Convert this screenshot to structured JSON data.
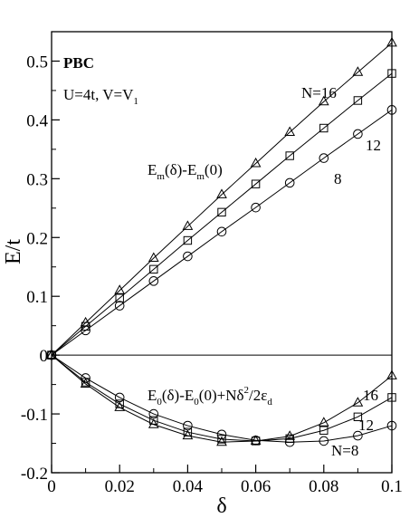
{
  "chart_data": {
    "type": "line",
    "xlabel": "δ",
    "ylabel": "E/t",
    "xlim": [
      0,
      0.1
    ],
    "ylim": [
      -0.2,
      0.55
    ],
    "x_ticks": [
      0,
      0.02,
      0.04,
      0.06,
      0.08,
      0.1
    ],
    "x_tick_labels": [
      "0",
      "0.02",
      "0.04",
      "0.06",
      "0.08",
      "0.1"
    ],
    "y_ticks": [
      -0.2,
      -0.1,
      0,
      0.1,
      0.2,
      0.3,
      0.4,
      0.5
    ],
    "y_tick_labels": [
      "-0.2",
      "-0.1",
      "0",
      "0.1",
      "0.2",
      "0.3",
      "0.4",
      "0.5"
    ],
    "zero_line": true,
    "grid": false,
    "annotations": {
      "bc": "PBC",
      "params": "U=4t,  V=V",
      "params_sub": "1",
      "upper_label": {
        "E1": "E",
        "s1": "m",
        "mid": "(δ)-E",
        "s2": "m",
        "end": "(0)"
      },
      "lower_label": {
        "E1": "E",
        "s1": "0",
        "mid": "(δ)-E",
        "s2": "0",
        "mid2": "(0)+Nδ",
        "sup": "2",
        "mid3": "/2ε",
        "s3": "d"
      },
      "upper_sizes": {
        "n16": "N=16",
        "n12": "12",
        "n8": "8"
      },
      "lower_sizes": {
        "n16": "16",
        "n12": "12",
        "n8": "N=8"
      }
    },
    "series": [
      {
        "marker": "triangle",
        "group": "upper",
        "x": [
          0,
          0.01,
          0.02,
          0.03,
          0.04,
          0.05,
          0.06,
          0.07,
          0.08,
          0.09,
          0.1
        ],
        "values": [
          0,
          0.055,
          0.11,
          0.165,
          0.219,
          0.273,
          0.326,
          0.379,
          0.431,
          0.481,
          0.531
        ]
      },
      {
        "marker": "square",
        "group": "upper",
        "x": [
          0,
          0.01,
          0.02,
          0.03,
          0.04,
          0.05,
          0.06,
          0.07,
          0.08,
          0.09,
          0.1
        ],
        "values": [
          0,
          0.049,
          0.097,
          0.146,
          0.195,
          0.243,
          0.291,
          0.339,
          0.386,
          0.433,
          0.479
        ]
      },
      {
        "marker": "circle",
        "group": "upper",
        "x": [
          0,
          0.01,
          0.02,
          0.03,
          0.04,
          0.05,
          0.06,
          0.07,
          0.08,
          0.09,
          0.1
        ],
        "values": [
          0,
          0.042,
          0.084,
          0.126,
          0.168,
          0.21,
          0.251,
          0.293,
          0.335,
          0.376,
          0.417
        ]
      },
      {
        "marker": "triangle",
        "group": "lower",
        "x": [
          0,
          0.01,
          0.02,
          0.03,
          0.04,
          0.05,
          0.06,
          0.07,
          0.08,
          0.09,
          0.1
        ],
        "values": [
          0,
          -0.049,
          -0.089,
          -0.118,
          -0.137,
          -0.148,
          -0.146,
          -0.138,
          -0.115,
          -0.081,
          -0.035
        ]
      },
      {
        "marker": "square",
        "group": "lower",
        "x": [
          0,
          0.01,
          0.02,
          0.03,
          0.04,
          0.05,
          0.06,
          0.07,
          0.08,
          0.09,
          0.1
        ],
        "values": [
          0,
          -0.046,
          -0.083,
          -0.111,
          -0.131,
          -0.143,
          -0.146,
          -0.142,
          -0.128,
          -0.105,
          -0.072
        ]
      },
      {
        "marker": "circle",
        "group": "lower",
        "x": [
          0,
          0.01,
          0.02,
          0.03,
          0.04,
          0.05,
          0.06,
          0.07,
          0.08,
          0.09,
          0.1
        ],
        "values": [
          0,
          -0.039,
          -0.072,
          -0.1,
          -0.12,
          -0.135,
          -0.145,
          -0.148,
          -0.146,
          -0.137,
          -0.12
        ]
      }
    ]
  }
}
